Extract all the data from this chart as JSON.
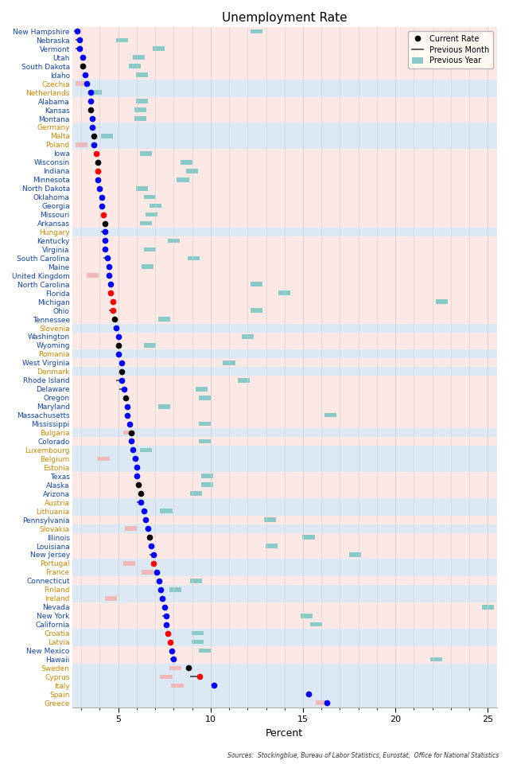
{
  "title": "Unemployment Rate",
  "xlabel": "Percent",
  "source": "Sources:  Stockingblue, Bureau of Labor Statistics, Eurostat,  Office for National Statistics",
  "xlim": [
    2.5,
    25.5
  ],
  "xticks": [
    5,
    10,
    15,
    20,
    25
  ],
  "entries": [
    {
      "label": "New Hampshire",
      "current": 2.8,
      "prev_month": 2.6,
      "prev_year": 12.5,
      "py_color": "teal",
      "dot_color": "blue",
      "is_eu": false
    },
    {
      "label": "Nebraska",
      "current": 2.9,
      "prev_month": 2.7,
      "prev_year": 5.2,
      "py_color": "teal",
      "dot_color": "blue",
      "is_eu": false
    },
    {
      "label": "Vermont",
      "current": 2.9,
      "prev_month": 2.7,
      "prev_year": 7.2,
      "py_color": "teal",
      "dot_color": "blue",
      "is_eu": false
    },
    {
      "label": "Utah",
      "current": 3.1,
      "prev_month": null,
      "prev_year": 6.1,
      "py_color": "teal",
      "dot_color": "blue",
      "is_eu": false
    },
    {
      "label": "South Dakota",
      "current": 3.1,
      "prev_month": null,
      "prev_year": 5.9,
      "py_color": "teal",
      "dot_color": "black",
      "is_eu": false
    },
    {
      "label": "Idaho",
      "current": 3.2,
      "prev_month": null,
      "prev_year": 6.3,
      "py_color": "teal",
      "dot_color": "blue",
      "is_eu": false
    },
    {
      "label": "Czechia",
      "current": 3.3,
      "prev_month": null,
      "prev_year": 3.0,
      "py_color": "pink",
      "dot_color": "blue",
      "is_eu": true
    },
    {
      "label": "Netherlands",
      "current": 3.5,
      "prev_month": null,
      "prev_year": 3.8,
      "py_color": "teal",
      "dot_color": "blue",
      "is_eu": true
    },
    {
      "label": "Alabama",
      "current": 3.5,
      "prev_month": null,
      "prev_year": 6.3,
      "py_color": "teal",
      "dot_color": "blue",
      "is_eu": false
    },
    {
      "label": "Kansas",
      "current": 3.5,
      "prev_month": null,
      "prev_year": 6.2,
      "py_color": "teal",
      "dot_color": "black",
      "is_eu": false
    },
    {
      "label": "Montana",
      "current": 3.6,
      "prev_month": null,
      "prev_year": 6.2,
      "py_color": "teal",
      "dot_color": "blue",
      "is_eu": false
    },
    {
      "label": "Germany",
      "current": 3.6,
      "prev_month": null,
      "prev_year": null,
      "py_color": null,
      "dot_color": "blue",
      "is_eu": true
    },
    {
      "label": "Malta",
      "current": 3.7,
      "prev_month": null,
      "prev_year": 4.4,
      "py_color": "teal",
      "dot_color": "black",
      "is_eu": true
    },
    {
      "label": "Poland",
      "current": 3.7,
      "prev_month": null,
      "prev_year": 3.0,
      "py_color": "pink",
      "dot_color": "blue",
      "is_eu": true
    },
    {
      "label": "Iowa",
      "current": 3.8,
      "prev_month": null,
      "prev_year": 6.5,
      "py_color": "teal",
      "dot_color": "red",
      "is_eu": false
    },
    {
      "label": "Wisconsin",
      "current": 3.9,
      "prev_month": null,
      "prev_year": 8.7,
      "py_color": "teal",
      "dot_color": "black",
      "is_eu": false
    },
    {
      "label": "Indiana",
      "current": 3.9,
      "prev_month": null,
      "prev_year": 9.0,
      "py_color": "teal",
      "dot_color": "red",
      "is_eu": false
    },
    {
      "label": "Minnesota",
      "current": 3.9,
      "prev_month": null,
      "prev_year": 8.5,
      "py_color": "teal",
      "dot_color": "blue",
      "is_eu": false
    },
    {
      "label": "North Dakota",
      "current": 4.0,
      "prev_month": null,
      "prev_year": 6.3,
      "py_color": "teal",
      "dot_color": "blue",
      "is_eu": false
    },
    {
      "label": "Oklahoma",
      "current": 4.1,
      "prev_month": null,
      "prev_year": 6.7,
      "py_color": "teal",
      "dot_color": "blue",
      "is_eu": false
    },
    {
      "label": "Georgia",
      "current": 4.1,
      "prev_month": null,
      "prev_year": 7.0,
      "py_color": "teal",
      "dot_color": "blue",
      "is_eu": false
    },
    {
      "label": "Missouri",
      "current": 4.2,
      "prev_month": null,
      "prev_year": 6.8,
      "py_color": "teal",
      "dot_color": "red",
      "is_eu": false
    },
    {
      "label": "Arkansas",
      "current": 4.3,
      "prev_month": null,
      "prev_year": 6.5,
      "py_color": "teal",
      "dot_color": "black",
      "is_eu": false
    },
    {
      "label": "Hungary",
      "current": 4.3,
      "prev_month": 4.05,
      "prev_year": null,
      "py_color": null,
      "dot_color": "blue",
      "is_eu": true
    },
    {
      "label": "Kentucky",
      "current": 4.3,
      "prev_month": null,
      "prev_year": 8.0,
      "py_color": "teal",
      "dot_color": "blue",
      "is_eu": false
    },
    {
      "label": "Virginia",
      "current": 4.3,
      "prev_month": null,
      "prev_year": 6.7,
      "py_color": "teal",
      "dot_color": "blue",
      "is_eu": false
    },
    {
      "label": "South Carolina",
      "current": 4.4,
      "prev_month": 4.2,
      "prev_year": 9.1,
      "py_color": "teal",
      "dot_color": "blue",
      "is_eu": false
    },
    {
      "label": "Maine",
      "current": 4.5,
      "prev_month": null,
      "prev_year": 6.6,
      "py_color": "teal",
      "dot_color": "blue",
      "is_eu": false
    },
    {
      "label": "United Kingdom",
      "current": 4.5,
      "prev_month": null,
      "prev_year": 3.6,
      "py_color": "pink",
      "dot_color": "blue",
      "is_eu": false
    },
    {
      "label": "North Carolina",
      "current": 4.6,
      "prev_month": null,
      "prev_year": 12.5,
      "py_color": "teal",
      "dot_color": "blue",
      "is_eu": false
    },
    {
      "label": "Florida",
      "current": 4.6,
      "prev_month": null,
      "prev_year": 14.0,
      "py_color": "teal",
      "dot_color": "red",
      "is_eu": false
    },
    {
      "label": "Michigan",
      "current": 4.7,
      "prev_month": null,
      "prev_year": 22.5,
      "py_color": "teal",
      "dot_color": "red",
      "is_eu": false
    },
    {
      "label": "Ohio",
      "current": 4.7,
      "prev_month": 4.5,
      "prev_year": 12.5,
      "py_color": "teal",
      "dot_color": "red",
      "is_eu": false
    },
    {
      "label": "Tennessee",
      "current": 4.8,
      "prev_month": null,
      "prev_year": 7.5,
      "py_color": "teal",
      "dot_color": "black",
      "is_eu": false
    },
    {
      "label": "Slovenia",
      "current": 4.9,
      "prev_month": null,
      "prev_year": null,
      "py_color": null,
      "dot_color": "blue",
      "is_eu": true
    },
    {
      "label": "Washington",
      "current": 5.0,
      "prev_month": null,
      "prev_year": 12.0,
      "py_color": "teal",
      "dot_color": "blue",
      "is_eu": false
    },
    {
      "label": "Wyoming",
      "current": 5.0,
      "prev_month": null,
      "prev_year": 6.7,
      "py_color": "teal",
      "dot_color": "black",
      "is_eu": false
    },
    {
      "label": "Romania",
      "current": 5.0,
      "prev_month": null,
      "prev_year": null,
      "py_color": null,
      "dot_color": "blue",
      "is_eu": true
    },
    {
      "label": "West Virginia",
      "current": 5.2,
      "prev_month": null,
      "prev_year": 11.0,
      "py_color": "teal",
      "dot_color": "blue",
      "is_eu": false
    },
    {
      "label": "Denmark",
      "current": 5.2,
      "prev_month": null,
      "prev_year": null,
      "py_color": null,
      "dot_color": "black",
      "is_eu": true
    },
    {
      "label": "Rhode Island",
      "current": 5.2,
      "prev_month": 4.9,
      "prev_year": 11.8,
      "py_color": "teal",
      "dot_color": "blue",
      "is_eu": false
    },
    {
      "label": "Delaware",
      "current": 5.3,
      "prev_month": 5.05,
      "prev_year": 9.5,
      "py_color": "teal",
      "dot_color": "blue",
      "is_eu": false
    },
    {
      "label": "Oregon",
      "current": 5.4,
      "prev_month": null,
      "prev_year": 9.7,
      "py_color": "teal",
      "dot_color": "black",
      "is_eu": false
    },
    {
      "label": "Maryland",
      "current": 5.5,
      "prev_month": null,
      "prev_year": 7.5,
      "py_color": "teal",
      "dot_color": "blue",
      "is_eu": false
    },
    {
      "label": "Massachusetts",
      "current": 5.5,
      "prev_month": null,
      "prev_year": 16.5,
      "py_color": "teal",
      "dot_color": "blue",
      "is_eu": false
    },
    {
      "label": "Mississippi",
      "current": 5.6,
      "prev_month": null,
      "prev_year": 9.7,
      "py_color": "teal",
      "dot_color": "blue",
      "is_eu": false
    },
    {
      "label": "Bulgaria",
      "current": 5.7,
      "prev_month": null,
      "prev_year": 5.6,
      "py_color": "pink",
      "dot_color": "black",
      "is_eu": true
    },
    {
      "label": "Colorado",
      "current": 5.7,
      "prev_month": null,
      "prev_year": 9.7,
      "py_color": "teal",
      "dot_color": "blue",
      "is_eu": false
    },
    {
      "label": "Luxembourg",
      "current": 5.8,
      "prev_month": null,
      "prev_year": 6.5,
      "py_color": "teal",
      "dot_color": "blue",
      "is_eu": true
    },
    {
      "label": "Belgium",
      "current": 5.9,
      "prev_month": null,
      "prev_year": 4.2,
      "py_color": "pink",
      "dot_color": "blue",
      "is_eu": true
    },
    {
      "label": "Estonia",
      "current": 6.0,
      "prev_month": null,
      "prev_year": null,
      "py_color": null,
      "dot_color": "blue",
      "is_eu": true
    },
    {
      "label": "Texas",
      "current": 6.0,
      "prev_month": null,
      "prev_year": 9.8,
      "py_color": "teal",
      "dot_color": "blue",
      "is_eu": false
    },
    {
      "label": "Alaska",
      "current": 6.1,
      "prev_month": null,
      "prev_year": 9.8,
      "py_color": "teal",
      "dot_color": "black",
      "is_eu": false
    },
    {
      "label": "Arizona",
      "current": 6.2,
      "prev_month": null,
      "prev_year": 9.2,
      "py_color": "teal",
      "dot_color": "black",
      "is_eu": false
    },
    {
      "label": "Austria",
      "current": 6.2,
      "prev_month": 6.0,
      "prev_year": null,
      "py_color": null,
      "dot_color": "blue",
      "is_eu": true
    },
    {
      "label": "Lithuania",
      "current": 6.4,
      "prev_month": null,
      "prev_year": 7.6,
      "py_color": "teal",
      "dot_color": "blue",
      "is_eu": true
    },
    {
      "label": "Pennsylvania",
      "current": 6.5,
      "prev_month": null,
      "prev_year": 13.2,
      "py_color": "teal",
      "dot_color": "blue",
      "is_eu": false
    },
    {
      "label": "Slovakia",
      "current": 6.6,
      "prev_month": null,
      "prev_year": 5.7,
      "py_color": "pink",
      "dot_color": "blue",
      "is_eu": true
    },
    {
      "label": "Illinois",
      "current": 6.7,
      "prev_month": null,
      "prev_year": 15.3,
      "py_color": "teal",
      "dot_color": "black",
      "is_eu": false
    },
    {
      "label": "Louisiana",
      "current": 6.8,
      "prev_month": null,
      "prev_year": 13.3,
      "py_color": "teal",
      "dot_color": "blue",
      "is_eu": false
    },
    {
      "label": "New Jersey",
      "current": 6.9,
      "prev_month": 6.7,
      "prev_year": 17.8,
      "py_color": "teal",
      "dot_color": "blue",
      "is_eu": false
    },
    {
      "label": "Portugal",
      "current": 6.9,
      "prev_month": null,
      "prev_year": 5.6,
      "py_color": "pink",
      "dot_color": "red",
      "is_eu": true
    },
    {
      "label": "France",
      "current": 7.1,
      "prev_month": null,
      "prev_year": 6.6,
      "py_color": "pink",
      "dot_color": "blue",
      "is_eu": true
    },
    {
      "label": "Connecticut",
      "current": 7.2,
      "prev_month": null,
      "prev_year": 9.2,
      "py_color": "teal",
      "dot_color": "blue",
      "is_eu": false
    },
    {
      "label": "Finland",
      "current": 7.3,
      "prev_month": null,
      "prev_year": 8.1,
      "py_color": "teal",
      "dot_color": "blue",
      "is_eu": true
    },
    {
      "label": "Ireland",
      "current": 7.4,
      "prev_month": null,
      "prev_year": 4.6,
      "py_color": "pink",
      "dot_color": "blue",
      "is_eu": true
    },
    {
      "label": "Nevada",
      "current": 7.5,
      "prev_month": null,
      "prev_year": 25.0,
      "py_color": "teal",
      "dot_color": "blue",
      "is_eu": false
    },
    {
      "label": "New York",
      "current": 7.6,
      "prev_month": 7.4,
      "prev_year": 15.2,
      "py_color": "teal",
      "dot_color": "blue",
      "is_eu": false
    },
    {
      "label": "California",
      "current": 7.6,
      "prev_month": null,
      "prev_year": 15.7,
      "py_color": "teal",
      "dot_color": "blue",
      "is_eu": false
    },
    {
      "label": "Croatia",
      "current": 7.7,
      "prev_month": null,
      "prev_year": 9.3,
      "py_color": "teal",
      "dot_color": "red",
      "is_eu": true
    },
    {
      "label": "Latvia",
      "current": 7.8,
      "prev_month": null,
      "prev_year": 9.3,
      "py_color": "teal",
      "dot_color": "red",
      "is_eu": true
    },
    {
      "label": "New Mexico",
      "current": 7.9,
      "prev_month": null,
      "prev_year": 9.7,
      "py_color": "teal",
      "dot_color": "blue",
      "is_eu": false
    },
    {
      "label": "Hawaii",
      "current": 8.0,
      "prev_month": 7.8,
      "prev_year": 22.2,
      "py_color": "teal",
      "dot_color": "blue",
      "is_eu": false
    },
    {
      "label": "Sweden",
      "current": 8.8,
      "prev_month": null,
      "prev_year": 8.1,
      "py_color": "pink",
      "dot_color": "black",
      "is_eu": true
    },
    {
      "label": "Cyprus",
      "current": 9.4,
      "prev_month": 8.9,
      "prev_year": 7.6,
      "py_color": "pink",
      "dot_color": "red",
      "is_eu": true
    },
    {
      "label": "Italy",
      "current": 10.2,
      "prev_month": null,
      "prev_year": 8.2,
      "py_color": "pink",
      "dot_color": "blue",
      "is_eu": true
    },
    {
      "label": "Spain",
      "current": 15.3,
      "prev_month": null,
      "prev_year": null,
      "py_color": null,
      "dot_color": "blue",
      "is_eu": true
    },
    {
      "label": "Greece",
      "current": 16.3,
      "prev_month": null,
      "prev_year": 16.0,
      "py_color": "pink",
      "dot_color": "blue",
      "is_eu": true
    }
  ],
  "bg_color_eu": "#dce9f5",
  "bg_color_us": "#fce8e4",
  "grid_color": "#d0d0d0",
  "teal_color": "#89c9c8",
  "pink_color": "#f0b8b8",
  "line_color": "#444444",
  "label_color_eu": "#cc8800",
  "label_color_us": "#1144aa",
  "label_color_uk": "#1144aa"
}
